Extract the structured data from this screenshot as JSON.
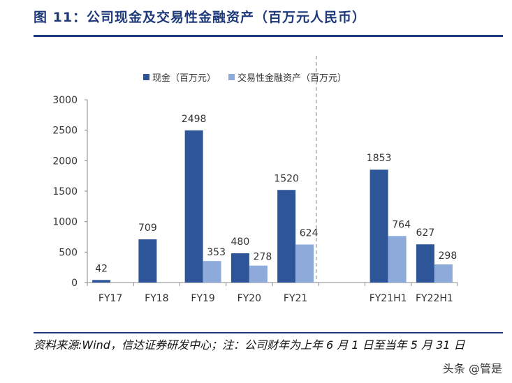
{
  "figure": {
    "title": "图 11：公司现金及交易性金融资产（百万元人民币）",
    "source_note": "资料来源:Wind，信达证券研发中心；注：公司财年为上年 6 月 1 日至当年 5 月 31 日",
    "watermark": "头条 @管是"
  },
  "colors": {
    "title": "#1f3a7a",
    "cash": "#2e5597",
    "financial_assets": "#8eaadb",
    "axis": "#888888",
    "divider": "#999999"
  },
  "chart_data": {
    "type": "bar",
    "categories": [
      "FY17",
      "FY18",
      "FY19",
      "FY20",
      "FY21",
      "",
      "FY21H1",
      "FY22H1"
    ],
    "series": [
      {
        "name": "现金（百万元）",
        "values": [
          42,
          709,
          2498,
          480,
          1520,
          null,
          1853,
          627
        ]
      },
      {
        "name": "交易性金融资产（百万元）",
        "values": [
          null,
          null,
          353,
          278,
          624,
          null,
          764,
          298
        ]
      }
    ],
    "ylim": [
      0,
      3000
    ],
    "yticks": [
      0,
      500,
      1000,
      1500,
      2000,
      2500,
      3000
    ],
    "grid": false,
    "legend": "top-left",
    "divider_after_category": 5
  }
}
